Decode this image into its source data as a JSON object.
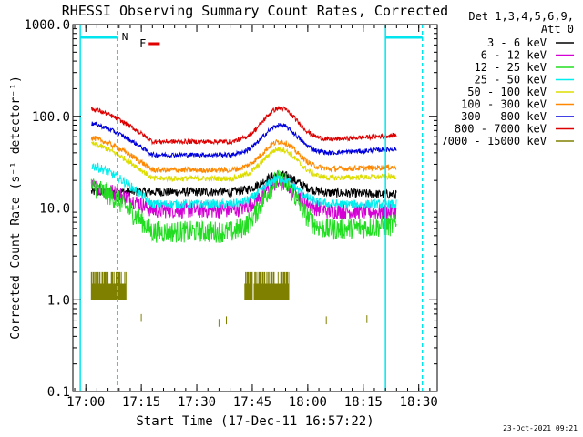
{
  "chart_data": {
    "type": "line",
    "title": "RHESSI Observing Summary Count Rates, Corrected",
    "xlabel": "Start Time (17-Dec-11 16:57:22)",
    "ylabel": "Corrected Count Rate (s⁻¹ detector⁻¹)",
    "yscale": "log",
    "ylim": [
      0.1,
      1000
    ],
    "xlim_minutes": [
      -3.5,
      35
    ],
    "x_units": "minutes after 17:00 UT",
    "x_ticks": [
      {
        "t": 0,
        "label": "17:00"
      },
      {
        "t": 15,
        "label": "17:15"
      },
      {
        "t": 30,
        "label": "17:30"
      },
      {
        "t": 45,
        "label": "17:45"
      },
      {
        "t": 60,
        "label": "18:00"
      },
      {
        "t": 75,
        "label": "18:15"
      },
      {
        "t": 90,
        "label": "18:30"
      }
    ],
    "y_ticks": [
      "0.1",
      "1.0",
      "10.0",
      "100.0",
      "1000.0"
    ],
    "legend_header": [
      "Det 1,3,4,5,6,9,",
      "Att 0"
    ],
    "legend_position": "right",
    "flags": {
      "night_label": "N",
      "flare_label": "F",
      "night_color": "#00e5ee",
      "flare_color": "#e00000"
    },
    "series": [
      {
        "name": "3 - 6 keV",
        "color": "#000000",
        "start": 15,
        "dip": 15,
        "peak": 23,
        "end": 14,
        "noise": 0.05
      },
      {
        "name": "6 - 12 keV",
        "color": "#d400d4",
        "start": 17,
        "dip": 9.5,
        "peak": 19,
        "end": 9,
        "noise": 0.09
      },
      {
        "name": "12 - 25 keV",
        "color": "#22dd22",
        "start": 17,
        "dip": 5.5,
        "peak": 20,
        "end": 6.5,
        "noise": 0.12
      },
      {
        "name": "25 - 50 keV",
        "color": "#00eeee",
        "start": 29,
        "dip": 11,
        "peak": 21,
        "end": 11,
        "noise": 0.05
      },
      {
        "name": "50 - 100 keV",
        "color": "#dddd00",
        "start": 50,
        "dip": 21,
        "peak": 44,
        "end": 22,
        "noise": 0.03
      },
      {
        "name": "100 - 300 keV",
        "color": "#ff8800",
        "start": 58,
        "dip": 26,
        "peak": 53,
        "end": 28,
        "noise": 0.03
      },
      {
        "name": "300 - 800 keV",
        "color": "#0000dd",
        "start": 83,
        "dip": 38,
        "peak": 80,
        "end": 44,
        "noise": 0.025
      },
      {
        "name": "800 - 7000 keV",
        "color": "#dd0000",
        "start": 120,
        "dip": 53,
        "peak": 123,
        "end": 62,
        "noise": 0.025
      },
      {
        "name": "7000 - 15000 keV",
        "color": "#808000",
        "start": 1.5,
        "dip": 1.0,
        "peak": 1.5,
        "end": 1.0,
        "noise": 0.2
      }
    ]
  },
  "footer": {
    "timestamp": "23-Oct-2021 09:21"
  }
}
